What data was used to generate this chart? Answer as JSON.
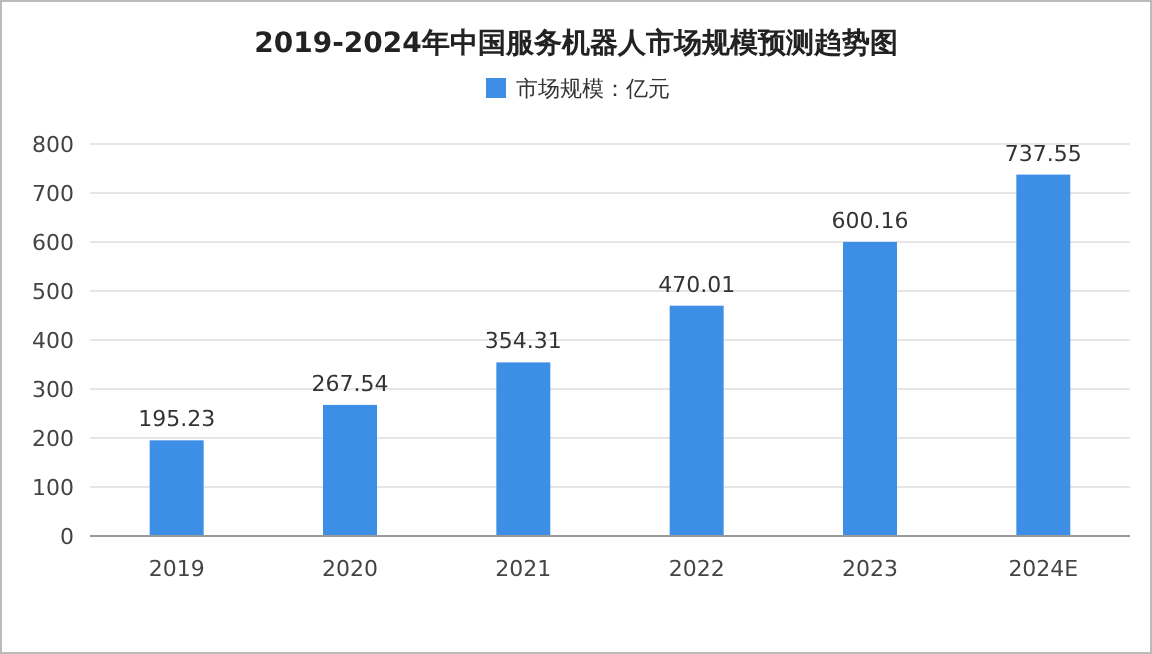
{
  "chart_data": {
    "type": "bar",
    "title": "2019-2024年中国服务机器人市场规模预测趋势图",
    "categories": [
      "2019",
      "2020",
      "2021",
      "2022",
      "2023",
      "2024E"
    ],
    "series": [
      {
        "name": "市场规模：亿元",
        "color": "#3d8fe6",
        "values": [
          195.23,
          267.54,
          354.31,
          470.01,
          600.16,
          737.55
        ]
      }
    ],
    "ylim": [
      0,
      800
    ],
    "yticks": [
      0,
      100,
      200,
      300,
      400,
      500,
      600,
      700,
      800
    ],
    "grid": "y",
    "legend": "top",
    "data_labels": true
  }
}
